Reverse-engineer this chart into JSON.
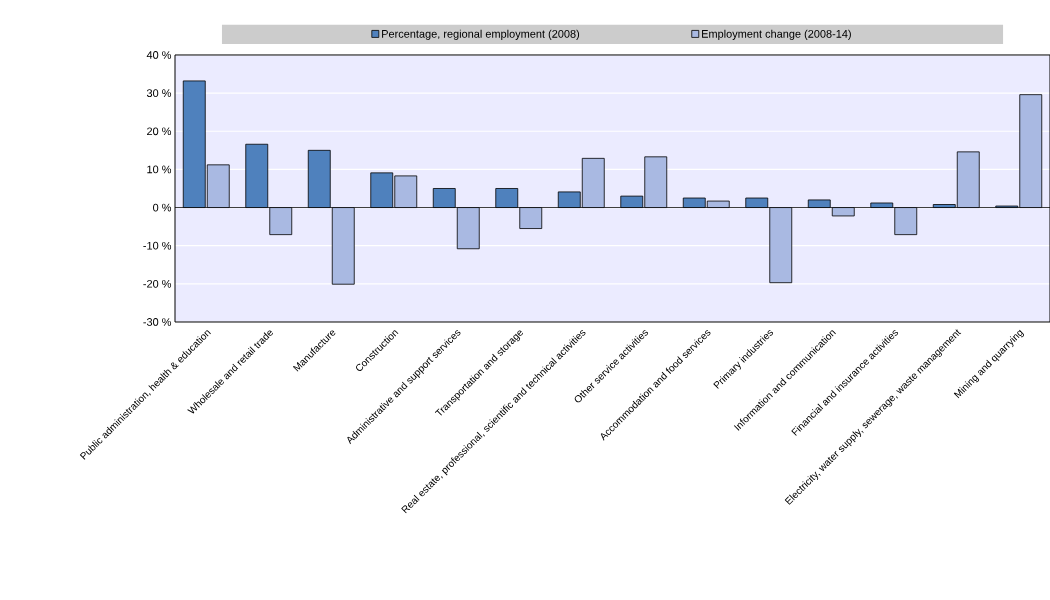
{
  "chart_data": {
    "type": "bar",
    "categories": [
      "Public administration, health & education",
      "Wholesale and retail trade",
      "Manufacture",
      "Construction",
      "Administrative and support services",
      "Transportation and storage",
      "Real estate, professional, scientific and technical activities",
      "Other service activities",
      "Accommodation and food services",
      "Primary industries",
      "Information and communication",
      "Financial and insurance activities",
      "Electricity, water supply, sewerage, waste management",
      "Mining and quarrying"
    ],
    "series": [
      {
        "name": "Percentage, regional employment (2008)",
        "color": "#4f81bd",
        "values": [
          33.2,
          16.6,
          15.0,
          9.1,
          5.0,
          5.0,
          4.1,
          3.0,
          2.5,
          2.5,
          2.0,
          1.2,
          0.8,
          0.4
        ]
      },
      {
        "name": "Employment change (2008-14)",
        "color": "#a9b9e2",
        "values": [
          11.2,
          -7.1,
          -20.1,
          8.3,
          -10.8,
          -5.5,
          12.9,
          13.3,
          1.7,
          -19.7,
          -2.2,
          -7.1,
          14.6,
          29.6
        ]
      }
    ],
    "ylim": [
      -30,
      40
    ],
    "yticks": [
      {
        "value": -30,
        "label": "-30 %"
      },
      {
        "value": -20,
        "label": "-20 %"
      },
      {
        "value": -10,
        "label": "-10 %"
      },
      {
        "value": 0,
        "label": "0 %"
      },
      {
        "value": 10,
        "label": "10 %"
      },
      {
        "value": 20,
        "label": "20 %"
      },
      {
        "value": 30,
        "label": "30 %"
      },
      {
        "value": 40,
        "label": "40 %"
      }
    ],
    "grid": "y",
    "legend": "top"
  }
}
